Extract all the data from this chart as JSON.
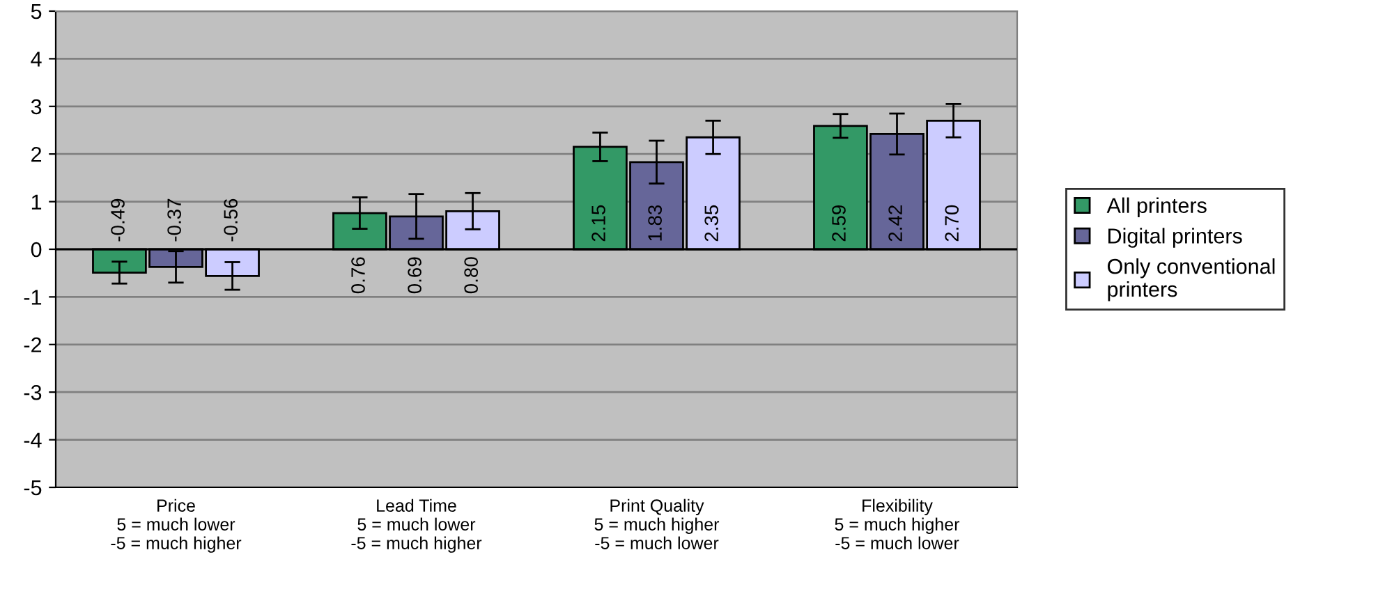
{
  "chart_data": {
    "type": "bar",
    "categories": [
      "Price\n5 = much lower\n-5 = much higher",
      "Lead Time\n5 = much lower\n-5 = much higher",
      "Print Quality\n5 = much higher\n-5 = much lower",
      "Flexibility\n5 = much higher\n-5 = much lower"
    ],
    "series": [
      {
        "name": "All printers",
        "color": "#339966",
        "values": [
          -0.49,
          0.76,
          2.15,
          2.59
        ],
        "value_labels": [
          "-0.49",
          "0.76",
          "2.15",
          "2.59"
        ],
        "errors": [
          0.23,
          0.33,
          0.3,
          0.25
        ]
      },
      {
        "name": "Digital printers",
        "color": "#666699",
        "values": [
          -0.37,
          0.69,
          1.83,
          2.42
        ],
        "value_labels": [
          "-0.37",
          "0.69",
          "1.83",
          "2.42"
        ],
        "errors": [
          0.33,
          0.47,
          0.45,
          0.43
        ]
      },
      {
        "name": "Only conventional printers",
        "color": "#ccccff",
        "values": [
          -0.56,
          0.8,
          2.35,
          2.7
        ],
        "value_labels": [
          "-0.56",
          "0.80",
          "2.35",
          "2.70"
        ],
        "errors": [
          0.29,
          0.38,
          0.35,
          0.35
        ]
      }
    ],
    "ylim": [
      -5,
      5
    ],
    "yticks": [
      -5,
      -4,
      -3,
      -2,
      -1,
      0,
      1,
      2,
      3,
      4,
      5
    ],
    "grid": "y",
    "legend": "right"
  }
}
